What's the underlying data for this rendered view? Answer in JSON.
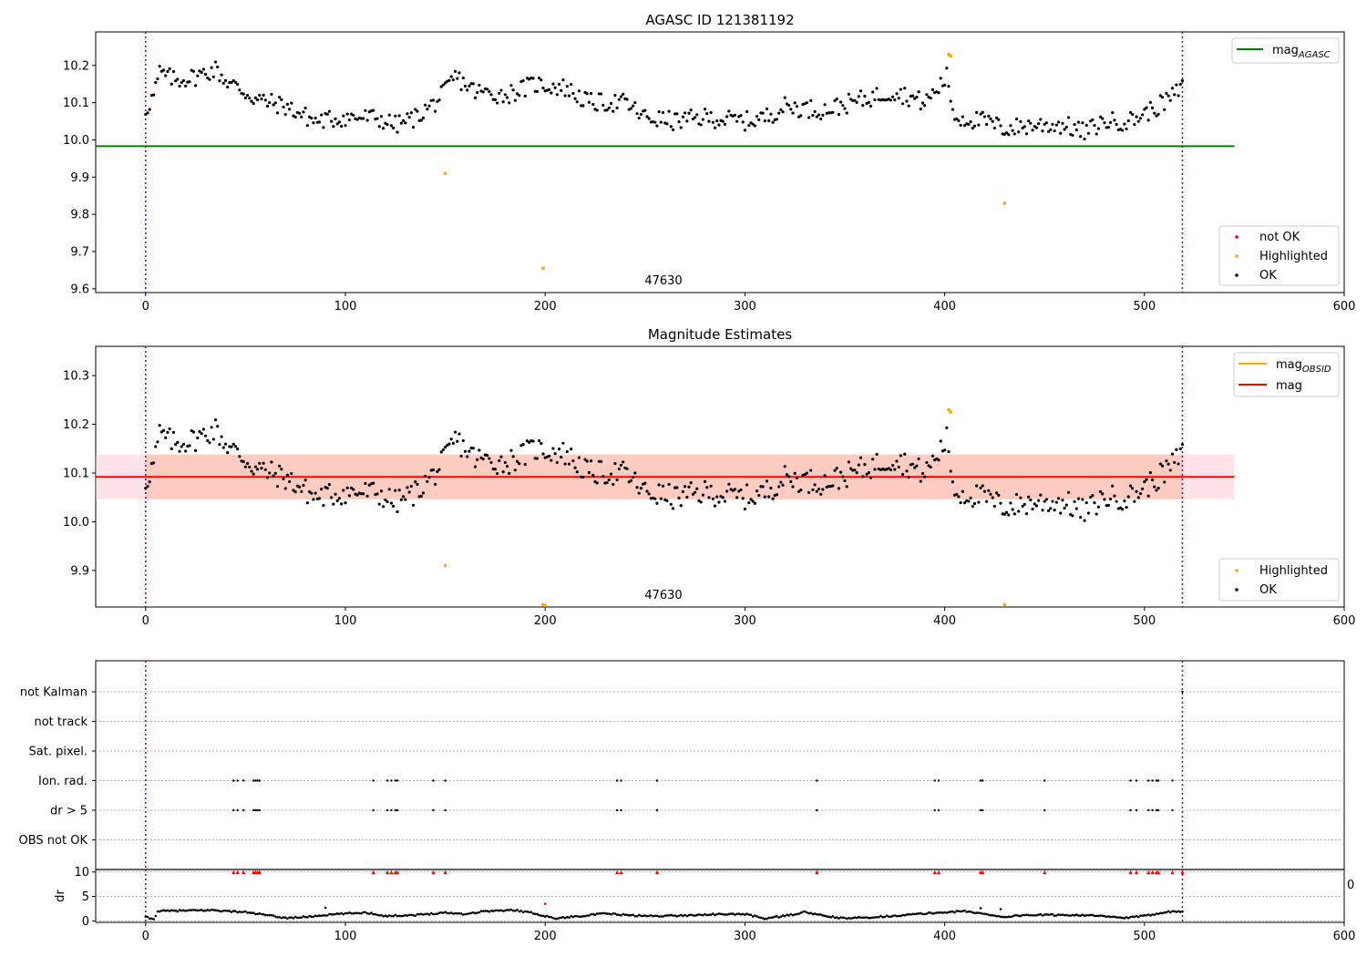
{
  "chart_data": [
    {
      "type": "scatter",
      "title": "AGASC ID 121381192",
      "xlabel": "",
      "ylabel": "",
      "xlim": [
        -25,
        600
      ],
      "ylim": [
        9.59,
        10.29
      ],
      "xticks": [
        0,
        100,
        200,
        300,
        400,
        500,
        600
      ],
      "yticks": [
        9.6,
        9.7,
        9.8,
        9.9,
        10.0,
        10.1,
        10.2
      ],
      "vlines": [
        0,
        519
      ],
      "hline": {
        "name": "mag",
        "name_sub": "AGASC",
        "value": 9.983,
        "x_range": [
          -25,
          545
        ],
        "color": "#008000"
      },
      "annotation": {
        "text": "47630",
        "x": 260,
        "y": 9.6
      },
      "legend_lines": {
        "placement": "upper right",
        "entries": [
          {
            "name": "mag",
            "sub": "AGASC",
            "color": "#008000"
          }
        ]
      },
      "legend_points": {
        "placement": "lower right",
        "entries": [
          {
            "name": "not OK",
            "color": "#ff0000"
          },
          {
            "name": "Highlighted",
            "color": "#ffa500"
          },
          {
            "name": "OK",
            "color": "#000000"
          }
        ]
      },
      "highlighted_points": [
        [
          150,
          9.91
        ],
        [
          199,
          9.655
        ],
        [
          402,
          10.23
        ],
        [
          403,
          10.225
        ],
        [
          430,
          9.83
        ]
      ],
      "ok_trend": [
        [
          0,
          10.08
        ],
        [
          4,
          10.12
        ],
        [
          7,
          10.18
        ],
        [
          15,
          10.16
        ],
        [
          25,
          10.17
        ],
        [
          35,
          10.19
        ],
        [
          40,
          10.16
        ],
        [
          55,
          10.11
        ],
        [
          70,
          10.09
        ],
        [
          85,
          10.05
        ],
        [
          100,
          10.06
        ],
        [
          115,
          10.06
        ],
        [
          125,
          10.04
        ],
        [
          135,
          10.06
        ],
        [
          145,
          10.1
        ],
        [
          150,
          10.13
        ],
        [
          155,
          10.17
        ],
        [
          165,
          10.13
        ],
        [
          180,
          10.12
        ],
        [
          195,
          10.15
        ],
        [
          210,
          10.14
        ],
        [
          222,
          10.1
        ],
        [
          240,
          10.1
        ],
        [
          250,
          10.06
        ],
        [
          265,
          10.05
        ],
        [
          280,
          10.06
        ],
        [
          300,
          10.05
        ],
        [
          310,
          10.06
        ],
        [
          320,
          10.09
        ],
        [
          340,
          10.08
        ],
        [
          360,
          10.11
        ],
        [
          375,
          10.13
        ],
        [
          390,
          10.1
        ],
        [
          397,
          10.14
        ],
        [
          401,
          10.17
        ],
        [
          405,
          10.06
        ],
        [
          420,
          10.05
        ],
        [
          430,
          10.03
        ],
        [
          445,
          10.04
        ],
        [
          460,
          10.04
        ],
        [
          470,
          10.02
        ],
        [
          480,
          10.05
        ],
        [
          492,
          10.05
        ],
        [
          500,
          10.07
        ],
        [
          510,
          10.1
        ],
        [
          519,
          10.14
        ]
      ],
      "ok_range_x": [
        0,
        519
      ]
    },
    {
      "type": "scatter",
      "title": "Magnitude Estimates",
      "xlabel": "",
      "ylabel": "",
      "xlim": [
        -25,
        600
      ],
      "ylim": [
        9.825,
        10.36
      ],
      "xticks": [
        0,
        100,
        200,
        300,
        400,
        500,
        600
      ],
      "yticks": [
        9.9,
        10.0,
        10.1,
        10.2,
        10.3
      ],
      "vlines": [
        0,
        519
      ],
      "hline": {
        "name": "mag",
        "value": 10.092,
        "x_range": [
          -25,
          545
        ],
        "color": "#ff0000"
      },
      "band": {
        "low": 10.046,
        "high": 10.138,
        "x_range": [
          -25,
          545
        ]
      },
      "annotation": {
        "text": "47630",
        "x": 260,
        "y": 9.825
      },
      "legend_lines": {
        "placement": "upper right",
        "entries": [
          {
            "name": "mag",
            "sub": "OBSID",
            "color": "#ffa500"
          },
          {
            "name": "mag",
            "color": "#ff0000"
          }
        ]
      },
      "legend_points": {
        "placement": "lower right",
        "entries": [
          {
            "name": "Highlighted",
            "color": "#ffa500"
          },
          {
            "name": "OK",
            "color": "#000000"
          }
        ]
      },
      "highlighted_points": [
        [
          150,
          9.91
        ],
        [
          199,
          9.83
        ],
        [
          200,
          9.828
        ],
        [
          402,
          10.23
        ],
        [
          403,
          10.225
        ],
        [
          430,
          9.83
        ]
      ]
    },
    {
      "type": "scatter",
      "title": "",
      "xlabel": "",
      "ylabel": "",
      "xlim": [
        -25,
        600
      ],
      "xticks": [
        0,
        100,
        200,
        300,
        400,
        500,
        600
      ],
      "categories": [
        "not Kalman",
        "not track",
        "Sat. pixel.",
        "Ion. rad.",
        "dr > 5",
        "OBS not OK"
      ],
      "vlines": [
        0,
        519
      ],
      "flag_events": {
        "not Kalman": [
          519
        ],
        "Ion. rad.": [
          44,
          46,
          49,
          54,
          55,
          56,
          57,
          114,
          121,
          123,
          125,
          126,
          144,
          150,
          236,
          238,
          256,
          336,
          395,
          397,
          418,
          419,
          450,
          493,
          496,
          502,
          504,
          506,
          507,
          514
        ],
        "dr > 5": [
          44,
          46,
          49,
          54,
          55,
          56,
          57,
          114,
          121,
          123,
          125,
          126,
          144,
          150,
          236,
          238,
          256,
          336,
          395,
          397,
          418,
          419,
          450,
          493,
          496,
          502,
          504,
          506,
          507,
          514
        ]
      }
    },
    {
      "type": "scatter",
      "title": "",
      "xlabel": "",
      "ylabel": "dr",
      "xlim": [
        -25,
        600
      ],
      "ylim": [
        -0.3,
        10.5
      ],
      "yticks": [
        0,
        5,
        10
      ],
      "xticks": [
        0,
        100,
        200,
        300,
        400,
        500,
        600
      ],
      "xtick_labels": [
        "0",
        "100",
        "200",
        "300",
        "400",
        "500",
        "600"
      ],
      "vlines": [
        0,
        519
      ],
      "overflow_marker_value": 10,
      "stray_label": "0",
      "dr_trend": [
        [
          0,
          0.8
        ],
        [
          4,
          0.3
        ],
        [
          6,
          2.0
        ],
        [
          20,
          2.1
        ],
        [
          35,
          2.2
        ],
        [
          40,
          2.0
        ],
        [
          50,
          1.8
        ],
        [
          60,
          1.2
        ],
        [
          70,
          0.6
        ],
        [
          80,
          0.8
        ],
        [
          90,
          1.2
        ],
        [
          100,
          1.5
        ],
        [
          110,
          1.7
        ],
        [
          115,
          1.4
        ],
        [
          120,
          1.0
        ],
        [
          135,
          1.2
        ],
        [
          150,
          1.7
        ],
        [
          160,
          1.4
        ],
        [
          170,
          2.0
        ],
        [
          185,
          2.2
        ],
        [
          195,
          1.5
        ],
        [
          205,
          0.5
        ],
        [
          215,
          0.9
        ],
        [
          230,
          1.5
        ],
        [
          240,
          1.2
        ],
        [
          250,
          1.0
        ],
        [
          270,
          1.1
        ],
        [
          280,
          1.3
        ],
        [
          300,
          1.4
        ],
        [
          310,
          0.5
        ],
        [
          320,
          1.0
        ],
        [
          330,
          1.8
        ],
        [
          340,
          1.0
        ],
        [
          350,
          0.5
        ],
        [
          370,
          0.9
        ],
        [
          390,
          1.5
        ],
        [
          410,
          2.0
        ],
        [
          420,
          1.4
        ],
        [
          430,
          0.8
        ],
        [
          440,
          1.2
        ],
        [
          470,
          1.2
        ],
        [
          490,
          0.6
        ],
        [
          500,
          1.0
        ],
        [
          510,
          1.8
        ],
        [
          519,
          2.0
        ]
      ],
      "dr_outliers": [
        [
          200,
          3.5
        ],
        [
          90,
          2.7
        ],
        [
          418,
          2.6
        ],
        [
          428,
          2.4
        ]
      ],
      "overflow_events": [
        44,
        46,
        49,
        54,
        55,
        56,
        57,
        114,
        121,
        123,
        125,
        126,
        144,
        150,
        236,
        238,
        256,
        336,
        395,
        397,
        418,
        419,
        450,
        493,
        496,
        502,
        504,
        506,
        507,
        514,
        519
      ]
    }
  ]
}
